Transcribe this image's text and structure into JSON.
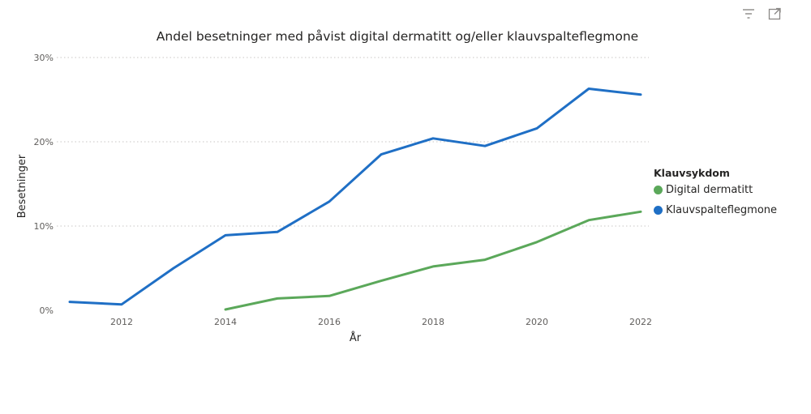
{
  "toolbar": {
    "filter_icon": "filter-icon",
    "focus_icon": "focus-mode-icon"
  },
  "colors": {
    "klauvspalteflegmone": "#1f6fc5",
    "digital_dermatitt": "#5ba85a",
    "gridline": "#c8c6c4"
  },
  "chart_data": {
    "type": "line",
    "title": "Andel besetninger med påvist digital dermatitt og/eller klauvspalteflegmone",
    "xlabel": "År",
    "ylabel": "Besetninger",
    "xlim": [
      2011,
      2022
    ],
    "ylim": [
      0,
      30
    ],
    "x_ticks": [
      "2012",
      "2014",
      "2016",
      "2018",
      "2020",
      "2022"
    ],
    "y_ticks": [
      "0%",
      "10%",
      "20%",
      "30%"
    ],
    "grid": true,
    "legend_title": "Klauvsykdom",
    "legend_position": "right",
    "series": [
      {
        "name": "Digital dermatitt",
        "color": "#5ba85a",
        "x": [
          2014,
          2015,
          2016,
          2017,
          2018,
          2019,
          2020,
          2021,
          2022
        ],
        "values": [
          0.1,
          1.4,
          1.7,
          3.5,
          5.2,
          6.0,
          8.1,
          10.7,
          11.7
        ]
      },
      {
        "name": "Klauvspalteflegmone",
        "color": "#1f6fc5",
        "x": [
          2011,
          2012,
          2013,
          2014,
          2015,
          2016,
          2017,
          2018,
          2019,
          2020,
          2021,
          2022
        ],
        "values": [
          1.0,
          0.7,
          5.0,
          8.9,
          9.3,
          12.9,
          18.5,
          20.4,
          19.5,
          21.6,
          26.3,
          25.6
        ]
      }
    ]
  }
}
